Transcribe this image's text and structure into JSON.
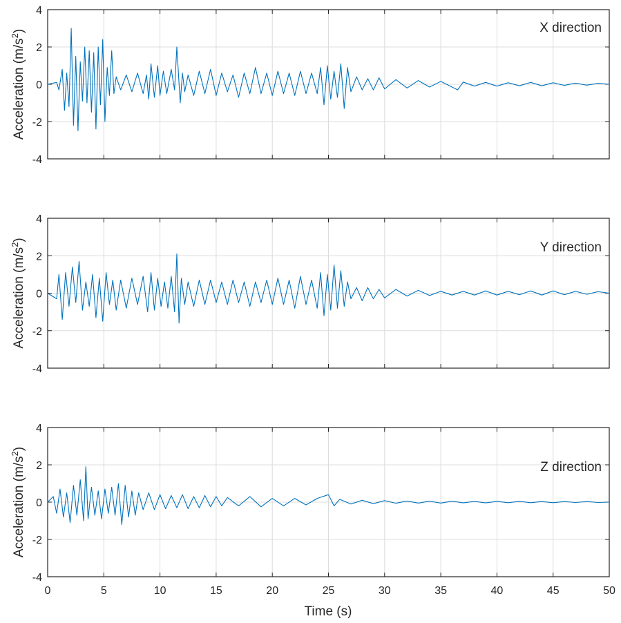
{
  "chart_data": [
    {
      "type": "line",
      "title": "X direction",
      "xlabel": "",
      "ylabel": "Acceleration (m/s",
      "ylabel_sup": "2",
      "ylabel_close": ")",
      "xlim": [
        0,
        50
      ],
      "ylim": [
        -4,
        4
      ],
      "xticks": [
        0,
        5,
        10,
        15,
        20,
        25,
        30,
        35,
        40,
        45,
        50
      ],
      "yticks": [
        -4,
        -2,
        0,
        2,
        4
      ],
      "grid": true,
      "color": "#0072BD",
      "series": [
        {
          "name": "X direction",
          "x": [
            0,
            0.8,
            1.0,
            1.3,
            1.5,
            1.7,
            1.9,
            2.1,
            2.3,
            2.5,
            2.7,
            2.9,
            3.1,
            3.3,
            3.5,
            3.7,
            3.9,
            4.1,
            4.3,
            4.5,
            4.7,
            4.9,
            5.1,
            5.3,
            5.5,
            5.7,
            5.9,
            6.1,
            6.5,
            7.0,
            7.5,
            8.0,
            8.5,
            8.8,
            9.0,
            9.2,
            9.5,
            9.8,
            10.0,
            10.3,
            10.6,
            11.0,
            11.3,
            11.5,
            11.8,
            12.0,
            12.2,
            12.5,
            13.0,
            13.5,
            14.0,
            14.5,
            15.0,
            15.5,
            16.0,
            16.5,
            17.0,
            17.5,
            18.0,
            18.5,
            19.0,
            19.5,
            20.0,
            20.5,
            21.0,
            21.5,
            22.0,
            22.5,
            23.0,
            23.5,
            24.0,
            24.3,
            24.6,
            24.9,
            25.2,
            25.5,
            25.8,
            26.1,
            26.4,
            26.7,
            27.0,
            27.5,
            28.0,
            28.5,
            29.0,
            29.5,
            30.0,
            31.0,
            32.0,
            33.0,
            34.0,
            35.0,
            36.0,
            36.5,
            37.0,
            38.0,
            39.0,
            40.0,
            41.0,
            42.0,
            43.0,
            44.0,
            45.0,
            46.0,
            47.0,
            48.0,
            49.0,
            50.0
          ],
          "values": [
            0,
            0.1,
            -0.3,
            0.8,
            -1.4,
            0.6,
            -1.2,
            3.0,
            -2.2,
            1.5,
            -2.5,
            1.2,
            -0.9,
            2.0,
            -1.0,
            1.8,
            -1.5,
            1.7,
            -2.4,
            2.0,
            -1.1,
            2.4,
            -2.0,
            0.9,
            -0.6,
            1.8,
            -0.5,
            0.4,
            -0.3,
            0.5,
            -0.4,
            0.6,
            -0.5,
            0.5,
            -0.8,
            1.1,
            -0.7,
            1.0,
            -0.6,
            0.7,
            -0.5,
            0.8,
            -0.3,
            2.0,
            -1.0,
            0.6,
            -0.4,
            0.5,
            -0.6,
            0.7,
            -0.5,
            0.8,
            -0.6,
            0.6,
            -0.4,
            0.5,
            -0.7,
            0.6,
            -0.5,
            0.9,
            -0.5,
            0.6,
            -0.6,
            0.7,
            -0.5,
            0.6,
            -0.6,
            0.7,
            -0.5,
            0.6,
            -0.5,
            0.9,
            -1.1,
            1.0,
            -0.8,
            0.7,
            -0.7,
            1.1,
            -1.3,
            0.9,
            -0.4,
            0.4,
            -0.3,
            0.3,
            -0.3,
            0.35,
            -0.25,
            0.25,
            -0.2,
            0.2,
            -0.15,
            0.15,
            -0.15,
            -0.3,
            0.12,
            -0.1,
            0.1,
            -0.1,
            0.08,
            -0.08,
            0.1,
            -0.08,
            0.08,
            -0.06,
            0.06,
            -0.05,
            0.05,
            0
          ]
        }
      ]
    },
    {
      "type": "line",
      "title": "Y direction",
      "xlabel": "",
      "ylabel": "Acceleration (m/s",
      "ylabel_sup": "2",
      "ylabel_close": ")",
      "xlim": [
        0,
        50
      ],
      "ylim": [
        -4,
        4
      ],
      "xticks": [
        0,
        5,
        10,
        15,
        20,
        25,
        30,
        35,
        40,
        45,
        50
      ],
      "yticks": [
        -4,
        -2,
        0,
        2,
        4
      ],
      "grid": true,
      "color": "#0072BD",
      "series": [
        {
          "name": "Y direction",
          "x": [
            0,
            0.8,
            1.0,
            1.3,
            1.6,
            1.9,
            2.2,
            2.5,
            2.8,
            3.1,
            3.4,
            3.7,
            4.0,
            4.3,
            4.6,
            4.9,
            5.2,
            5.5,
            5.8,
            6.1,
            6.5,
            7.0,
            7.5,
            8.0,
            8.5,
            8.9,
            9.2,
            9.5,
            9.8,
            10.1,
            10.4,
            10.7,
            11.0,
            11.3,
            11.5,
            11.7,
            11.9,
            12.2,
            12.5,
            13.0,
            13.5,
            14.0,
            14.5,
            15.0,
            15.5,
            16.0,
            16.5,
            17.0,
            17.5,
            18.0,
            18.5,
            19.0,
            19.5,
            20.0,
            20.5,
            21.0,
            21.5,
            22.0,
            22.5,
            23.0,
            23.5,
            24.0,
            24.3,
            24.6,
            24.9,
            25.2,
            25.5,
            25.8,
            26.1,
            26.4,
            26.7,
            27.0,
            27.5,
            28.0,
            28.5,
            29.0,
            29.5,
            30.0,
            31.0,
            32.0,
            33.0,
            34.0,
            35.0,
            36.0,
            37.0,
            38.0,
            39.0,
            40.0,
            41.0,
            42.0,
            43.0,
            44.0,
            45.0,
            46.0,
            47.0,
            48.0,
            49.0,
            50.0
          ],
          "values": [
            0,
            -0.3,
            1.0,
            -1.4,
            1.1,
            -0.7,
            1.4,
            -0.5,
            1.7,
            -0.9,
            0.6,
            -0.7,
            1.0,
            -1.3,
            0.8,
            -1.5,
            1.1,
            -0.6,
            0.7,
            -0.9,
            0.7,
            -0.8,
            0.8,
            -0.6,
            0.9,
            -1.0,
            1.1,
            -0.9,
            0.8,
            -0.7,
            0.6,
            -0.8,
            0.9,
            -1.0,
            2.1,
            -1.6,
            0.8,
            -0.6,
            0.6,
            -0.7,
            0.7,
            -0.6,
            0.7,
            -0.5,
            0.6,
            -0.6,
            0.7,
            -0.5,
            0.6,
            -0.7,
            0.6,
            -0.5,
            0.7,
            -0.6,
            0.8,
            -0.6,
            0.7,
            -0.8,
            0.9,
            -0.6,
            0.7,
            -0.8,
            1.1,
            -1.2,
            1.0,
            -0.9,
            1.5,
            -0.8,
            1.2,
            -0.7,
            0.6,
            -0.3,
            0.3,
            -0.4,
            0.3,
            -0.3,
            0.2,
            -0.25,
            0.2,
            -0.15,
            0.15,
            -0.12,
            0.1,
            -0.1,
            0.1,
            -0.1,
            0.12,
            -0.1,
            0.1,
            -0.08,
            0.12,
            -0.1,
            0.12,
            -0.08,
            0.1,
            -0.06,
            0.08,
            0
          ]
        }
      ]
    },
    {
      "type": "line",
      "title": "Z direction",
      "xlabel": "Time (s)",
      "ylabel": "Acceleration (m/s",
      "ylabel_sup": "2",
      "ylabel_close": ")",
      "xlim": [
        0,
        50
      ],
      "ylim": [
        -4,
        4
      ],
      "xticks": [
        0,
        5,
        10,
        15,
        20,
        25,
        30,
        35,
        40,
        45,
        50
      ],
      "yticks": [
        -4,
        -2,
        0,
        2,
        4
      ],
      "grid": true,
      "color": "#0072BD",
      "series": [
        {
          "name": "Z direction",
          "x": [
            0,
            0.5,
            0.8,
            1.1,
            1.4,
            1.7,
            2.0,
            2.3,
            2.6,
            2.9,
            3.2,
            3.4,
            3.6,
            3.9,
            4.2,
            4.5,
            4.8,
            5.1,
            5.4,
            5.7,
            6.0,
            6.3,
            6.6,
            6.9,
            7.2,
            7.5,
            7.8,
            8.1,
            8.5,
            9.0,
            9.5,
            10.0,
            10.5,
            11.0,
            11.5,
            12.0,
            12.5,
            13.0,
            13.5,
            14.0,
            14.5,
            15.0,
            15.5,
            16.0,
            17.0,
            18.0,
            19.0,
            20.0,
            21.0,
            22.0,
            23.0,
            24.0,
            25.0,
            25.5,
            26.0,
            27.0,
            28.0,
            29.0,
            30.0,
            31.0,
            32.0,
            33.0,
            34.0,
            35.0,
            36.0,
            37.0,
            38.0,
            39.0,
            40.0,
            41.0,
            42.0,
            43.0,
            44.0,
            45.0,
            46.0,
            47.0,
            48.0,
            49.0,
            50.0
          ],
          "values": [
            0,
            0.3,
            -0.6,
            0.7,
            -0.8,
            0.5,
            -1.1,
            0.9,
            -0.7,
            1.2,
            -1.0,
            1.9,
            -0.9,
            0.8,
            -0.7,
            0.6,
            -0.9,
            0.7,
            -0.6,
            0.8,
            -0.7,
            1.0,
            -1.2,
            0.9,
            -0.8,
            0.6,
            -0.7,
            0.5,
            -0.4,
            0.5,
            -0.4,
            0.4,
            -0.35,
            0.35,
            -0.3,
            0.4,
            -0.35,
            0.3,
            -0.3,
            0.35,
            -0.25,
            0.3,
            -0.2,
            0.25,
            -0.2,
            0.3,
            -0.25,
            0.2,
            -0.2,
            0.2,
            -0.15,
            0.2,
            0.4,
            -0.2,
            0.15,
            -0.1,
            0.1,
            -0.08,
            0.08,
            -0.06,
            0.06,
            -0.05,
            0.05,
            -0.05,
            0.05,
            -0.04,
            0.04,
            -0.04,
            0.04,
            -0.03,
            0.04,
            -0.03,
            0.03,
            -0.03,
            0.03,
            -0.02,
            0.03,
            -0.02,
            0
          ]
        }
      ]
    }
  ]
}
